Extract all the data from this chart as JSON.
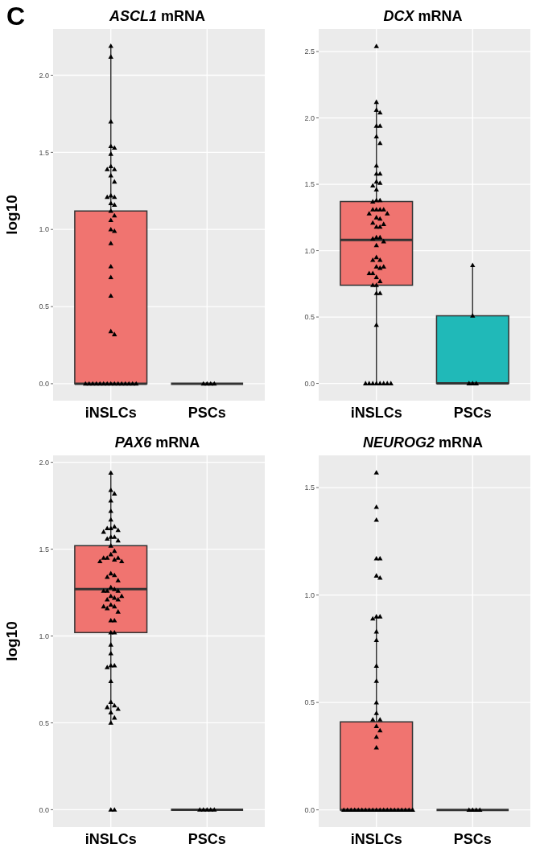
{
  "chart_data": [
    {
      "type": "box",
      "title": "ASCL1 mRNA",
      "ylabel": "log10",
      "annotations": [
        "C"
      ],
      "categories": [
        "iNSLCs",
        "PSCs"
      ],
      "colors": [
        "#f07470",
        "#333333"
      ],
      "grid": true,
      "marker": "triangle",
      "ylim": [
        -0.11,
        2.3
      ],
      "yticks": [
        {
          "value": 0,
          "label": "0.0"
        },
        {
          "value": 0.5,
          "label": "0.5"
        },
        {
          "value": 1,
          "label": "1.0"
        },
        {
          "value": 1.5,
          "label": "1.5"
        },
        {
          "value": 2,
          "label": "2.0"
        }
      ],
      "boxes": [
        {
          "low": 0,
          "q1": 0,
          "median": 0,
          "q3": 1.12,
          "high": 2.19
        },
        {
          "low": 0,
          "q1": 0,
          "median": 0,
          "q3": 0,
          "high": 0
        }
      ],
      "series": [
        {
          "type": "scatter",
          "color": "#000000",
          "x": [
            "iNSLCs",
            "iNSLCs",
            "iNSLCs",
            "iNSLCs",
            "iNSLCs",
            "iNSLCs",
            "iNSLCs",
            "iNSLCs",
            "iNSLCs",
            "iNSLCs",
            "iNSLCs",
            "iNSLCs",
            "iNSLCs",
            "iNSLCs",
            "iNSLCs",
            "iNSLCs",
            "iNSLCs",
            "iNSLCs",
            "iNSLCs",
            "iNSLCs",
            "iNSLCs",
            "iNSLCs",
            "iNSLCs",
            "iNSLCs",
            "iNSLCs",
            "iNSLCs",
            "iNSLCs",
            "iNSLCs",
            "iNSLCs",
            "iNSLCs",
            "iNSLCs",
            "iNSLCs",
            "iNSLCs",
            "iNSLCs",
            "iNSLCs",
            "iNSLCs",
            "iNSLCs",
            "iNSLCs",
            "iNSLCs",
            "iNSLCs",
            "iNSLCs",
            "iNSLCs",
            "PSCs",
            "PSCs",
            "PSCs",
            "PSCs"
          ],
          "values": [
            2.19,
            2.12,
            1.7,
            1.54,
            1.53,
            1.49,
            1.41,
            1.39,
            1.39,
            1.35,
            1.31,
            1.22,
            1.21,
            1.21,
            1.17,
            1.16,
            1.12,
            1.09,
            1.06,
            1.0,
            0.99,
            0.91,
            0.76,
            0.69,
            0.57,
            0.34,
            0.32,
            0,
            0,
            0,
            0,
            0,
            0,
            0,
            0,
            0,
            0,
            0,
            0,
            0,
            0,
            0,
            0,
            0,
            0,
            0
          ]
        }
      ]
    },
    {
      "type": "box",
      "title": "DCX mRNA",
      "categories": [
        "iNSLCs",
        "PSCs"
      ],
      "colors": [
        "#f07470",
        "#20b9b8"
      ],
      "grid": true,
      "marker": "triangle",
      "ylim": [
        -0.13,
        2.67
      ],
      "yticks": [
        {
          "value": 0,
          "label": "0.0"
        },
        {
          "value": 0.5,
          "label": "0.5"
        },
        {
          "value": 1,
          "label": "1.0"
        },
        {
          "value": 1.5,
          "label": "1.5"
        },
        {
          "value": 2,
          "label": "2.0"
        },
        {
          "value": 2.5,
          "label": "2.5"
        }
      ],
      "boxes": [
        {
          "low": 0,
          "q1": 0.74,
          "median": 1.08,
          "q3": 1.37,
          "high": 2.12
        },
        {
          "low": 0,
          "q1": 0,
          "median": 0,
          "q3": 0.51,
          "high": 0.89
        }
      ],
      "series": [
        {
          "type": "scatter",
          "color": "#000000",
          "x": [
            "iNSLCs",
            "iNSLCs",
            "iNSLCs",
            "iNSLCs",
            "iNSLCs",
            "iNSLCs",
            "iNSLCs",
            "iNSLCs",
            "iNSLCs",
            "iNSLCs",
            "iNSLCs",
            "iNSLCs",
            "iNSLCs",
            "iNSLCs",
            "iNSLCs",
            "iNSLCs",
            "iNSLCs",
            "iNSLCs",
            "iNSLCs",
            "iNSLCs",
            "iNSLCs",
            "iNSLCs",
            "iNSLCs",
            "iNSLCs",
            "iNSLCs",
            "iNSLCs",
            "iNSLCs",
            "iNSLCs",
            "iNSLCs",
            "iNSLCs",
            "iNSLCs",
            "iNSLCs",
            "iNSLCs",
            "iNSLCs",
            "iNSLCs",
            "iNSLCs",
            "iNSLCs",
            "iNSLCs",
            "iNSLCs",
            "iNSLCs",
            "iNSLCs",
            "iNSLCs",
            "iNSLCs",
            "iNSLCs",
            "iNSLCs",
            "iNSLCs",
            "iNSLCs",
            "iNSLCs",
            "iNSLCs",
            "iNSLCs",
            "iNSLCs",
            "iNSLCs",
            "iNSLCs",
            "iNSLCs",
            "iNSLCs",
            "iNSLCs",
            "iNSLCs",
            "iNSLCs",
            "PSCs",
            "PSCs",
            "PSCs",
            "PSCs",
            "PSCs"
          ],
          "values": [
            2.54,
            2.12,
            2.06,
            2.04,
            1.94,
            1.94,
            1.86,
            1.81,
            1.64,
            1.58,
            1.58,
            1.52,
            1.51,
            1.49,
            1.46,
            1.38,
            1.38,
            1.37,
            1.31,
            1.31,
            1.31,
            1.31,
            1.28,
            1.28,
            1.25,
            1.24,
            1.21,
            1.2,
            1.18,
            1.18,
            1.1,
            1.1,
            1.09,
            1.07,
            1.04,
            0.95,
            0.93,
            0.93,
            0.88,
            0.88,
            0.87,
            0.83,
            0.83,
            0.8,
            0.77,
            0.74,
            0.74,
            0.68,
            0.68,
            0.44,
            0,
            0,
            0,
            0,
            0,
            0,
            0,
            0,
            0.89,
            0.51,
            0,
            0,
            0
          ]
        }
      ]
    },
    {
      "type": "box",
      "title": "PAX6 mRNA",
      "ylabel": "log10",
      "categories": [
        "iNSLCs",
        "PSCs"
      ],
      "colors": [
        "#f07470",
        "#333333"
      ],
      "grid": true,
      "marker": "triangle",
      "ylim": [
        -0.1,
        2.04
      ],
      "yticks": [
        {
          "value": 0,
          "label": "0.0"
        },
        {
          "value": 0.5,
          "label": "0.5"
        },
        {
          "value": 1,
          "label": "1.0"
        },
        {
          "value": 1.5,
          "label": "1.5"
        },
        {
          "value": 2,
          "label": "2.0"
        }
      ],
      "boxes": [
        {
          "low": 0.5,
          "q1": 1.02,
          "median": 1.27,
          "q3": 1.52,
          "high": 1.93
        },
        {
          "low": 0,
          "q1": 0,
          "median": 0,
          "q3": 0,
          "high": 0
        }
      ],
      "series": [
        {
          "type": "scatter",
          "color": "#000000",
          "x": [
            "iNSLCs",
            "iNSLCs",
            "iNSLCs",
            "iNSLCs",
            "iNSLCs",
            "iNSLCs",
            "iNSLCs",
            "iNSLCs",
            "iNSLCs",
            "iNSLCs",
            "iNSLCs",
            "iNSLCs",
            "iNSLCs",
            "iNSLCs",
            "iNSLCs",
            "iNSLCs",
            "iNSLCs",
            "iNSLCs",
            "iNSLCs",
            "iNSLCs",
            "iNSLCs",
            "iNSLCs",
            "iNSLCs",
            "iNSLCs",
            "iNSLCs",
            "iNSLCs",
            "iNSLCs",
            "iNSLCs",
            "iNSLCs",
            "iNSLCs",
            "iNSLCs",
            "iNSLCs",
            "iNSLCs",
            "iNSLCs",
            "iNSLCs",
            "iNSLCs",
            "iNSLCs",
            "iNSLCs",
            "iNSLCs",
            "iNSLCs",
            "iNSLCs",
            "iNSLCs",
            "iNSLCs",
            "iNSLCs",
            "iNSLCs",
            "iNSLCs",
            "iNSLCs",
            "iNSLCs",
            "iNSLCs",
            "iNSLCs",
            "iNSLCs",
            "iNSLCs",
            "iNSLCs",
            "iNSLCs",
            "iNSLCs",
            "iNSLCs",
            "iNSLCs",
            "iNSLCs",
            "iNSLCs",
            "iNSLCs",
            "iNSLCs",
            "iNSLCs",
            "PSCs",
            "PSCs",
            "PSCs",
            "PSCs",
            "PSCs"
          ],
          "values": [
            1.94,
            1.84,
            1.82,
            1.78,
            1.72,
            1.67,
            1.63,
            1.62,
            1.62,
            1.61,
            1.6,
            1.57,
            1.57,
            1.56,
            1.55,
            1.52,
            1.49,
            1.47,
            1.45,
            1.45,
            1.45,
            1.44,
            1.43,
            1.43,
            1.36,
            1.35,
            1.34,
            1.32,
            1.28,
            1.27,
            1.26,
            1.26,
            1.26,
            1.23,
            1.23,
            1.22,
            1.21,
            1.21,
            1.18,
            1.17,
            1.17,
            1.16,
            1.14,
            1.09,
            1.09,
            1.02,
            1.02,
            0.95,
            0.9,
            0.83,
            0.83,
            0.82,
            0.74,
            0.62,
            0.6,
            0.59,
            0.58,
            0.56,
            0.53,
            0.5,
            0,
            0,
            0,
            0,
            0,
            0,
            0
          ]
        }
      ]
    },
    {
      "type": "box",
      "title": "NEUROG2 mRNA",
      "categories": [
        "iNSLCs",
        "PSCs"
      ],
      "colors": [
        "#f07470",
        "#333333"
      ],
      "grid": true,
      "marker": "triangle",
      "ylim": [
        -0.08,
        1.65
      ],
      "yticks": [
        {
          "value": 0,
          "label": "0.0"
        },
        {
          "value": 0.5,
          "label": "0.5"
        },
        {
          "value": 1,
          "label": "1.0"
        },
        {
          "value": 1.5,
          "label": "1.5"
        }
      ],
      "boxes": [
        {
          "low": 0,
          "q1": 0,
          "median": 0,
          "q3": 0.41,
          "high": 0.9
        },
        {
          "low": 0,
          "q1": 0,
          "median": 0,
          "q3": 0,
          "high": 0
        }
      ],
      "series": [
        {
          "type": "scatter",
          "color": "#000000",
          "x": [
            "iNSLCs",
            "iNSLCs",
            "iNSLCs",
            "iNSLCs",
            "iNSLCs",
            "iNSLCs",
            "iNSLCs",
            "iNSLCs",
            "iNSLCs",
            "iNSLCs",
            "iNSLCs",
            "iNSLCs",
            "iNSLCs",
            "iNSLCs",
            "iNSLCs",
            "iNSLCs",
            "iNSLCs",
            "iNSLCs",
            "iNSLCs",
            "iNSLCs",
            "iNSLCs",
            "iNSLCs",
            "iNSLCs",
            "iNSLCs",
            "iNSLCs",
            "iNSLCs",
            "iNSLCs",
            "iNSLCs",
            "iNSLCs",
            "iNSLCs",
            "iNSLCs",
            "iNSLCs",
            "iNSLCs",
            "iNSLCs",
            "iNSLCs",
            "iNSLCs",
            "iNSLCs",
            "iNSLCs",
            "iNSLCs",
            "iNSLCs",
            "iNSLCs",
            "iNSLCs",
            "PSCs",
            "PSCs",
            "PSCs",
            "PSCs"
          ],
          "values": [
            1.57,
            1.41,
            1.35,
            1.17,
            1.17,
            1.09,
            1.08,
            0.9,
            0.9,
            0.89,
            0.83,
            0.79,
            0.67,
            0.6,
            0.5,
            0.45,
            0.42,
            0.42,
            0.39,
            0.37,
            0.34,
            0.29,
            0,
            0,
            0,
            0,
            0,
            0,
            0,
            0,
            0,
            0,
            0,
            0,
            0,
            0,
            0,
            0,
            0,
            0,
            0,
            0,
            0,
            0,
            0,
            0
          ]
        }
      ]
    }
  ]
}
